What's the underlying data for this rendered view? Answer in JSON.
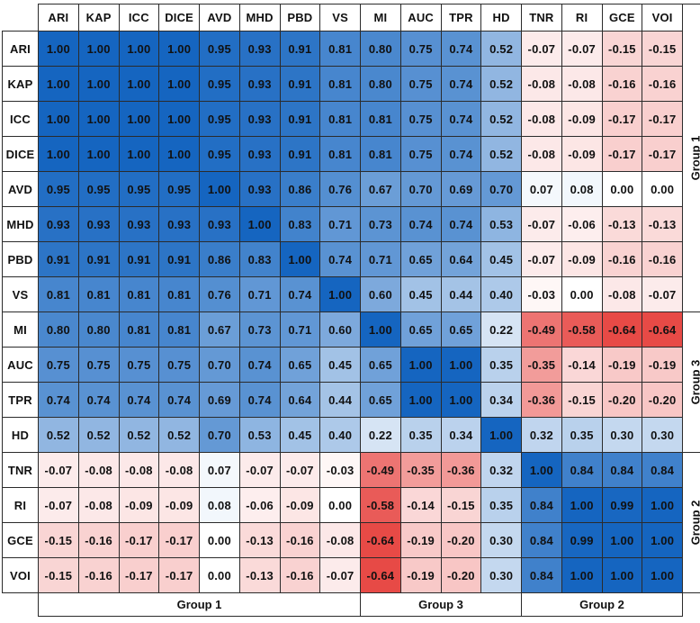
{
  "chart_data": {
    "type": "heatmap",
    "labels": [
      "ARI",
      "KAP",
      "ICC",
      "DICE",
      "AVD",
      "MHD",
      "PBD",
      "VS",
      "MI",
      "AUC",
      "TPR",
      "HD",
      "TNR",
      "RI",
      "GCE",
      "VOI"
    ],
    "values": [
      [
        1.0,
        1.0,
        1.0,
        1.0,
        0.95,
        0.93,
        0.91,
        0.81,
        0.8,
        0.75,
        0.74,
        0.52,
        -0.07,
        -0.07,
        -0.15,
        -0.15
      ],
      [
        1.0,
        1.0,
        1.0,
        1.0,
        0.95,
        0.93,
        0.91,
        0.81,
        0.8,
        0.75,
        0.74,
        0.52,
        -0.08,
        -0.08,
        -0.16,
        -0.16
      ],
      [
        1.0,
        1.0,
        1.0,
        1.0,
        0.95,
        0.93,
        0.91,
        0.81,
        0.81,
        0.75,
        0.74,
        0.52,
        -0.08,
        -0.09,
        -0.17,
        -0.17
      ],
      [
        1.0,
        1.0,
        1.0,
        1.0,
        0.95,
        0.93,
        0.91,
        0.81,
        0.81,
        0.75,
        0.74,
        0.52,
        -0.08,
        -0.09,
        -0.17,
        -0.17
      ],
      [
        0.95,
        0.95,
        0.95,
        0.95,
        1.0,
        0.93,
        0.86,
        0.76,
        0.67,
        0.7,
        0.69,
        0.7,
        0.07,
        0.08,
        0.0,
        0.0
      ],
      [
        0.93,
        0.93,
        0.93,
        0.93,
        0.93,
        1.0,
        0.83,
        0.71,
        0.73,
        0.74,
        0.74,
        0.53,
        -0.07,
        -0.06,
        -0.13,
        -0.13
      ],
      [
        0.91,
        0.91,
        0.91,
        0.91,
        0.86,
        0.83,
        1.0,
        0.74,
        0.71,
        0.65,
        0.64,
        0.45,
        -0.07,
        -0.09,
        -0.16,
        -0.16
      ],
      [
        0.81,
        0.81,
        0.81,
        0.81,
        0.76,
        0.71,
        0.74,
        1.0,
        0.6,
        0.45,
        0.44,
        0.4,
        -0.03,
        0.0,
        -0.08,
        -0.07
      ],
      [
        0.8,
        0.8,
        0.81,
        0.81,
        0.67,
        0.73,
        0.71,
        0.6,
        1.0,
        0.65,
        0.65,
        0.22,
        -0.49,
        -0.58,
        -0.64,
        -0.64
      ],
      [
        0.75,
        0.75,
        0.75,
        0.75,
        0.7,
        0.74,
        0.65,
        0.45,
        0.65,
        1.0,
        1.0,
        0.35,
        -0.35,
        -0.14,
        -0.19,
        -0.19
      ],
      [
        0.74,
        0.74,
        0.74,
        0.74,
        0.69,
        0.74,
        0.64,
        0.44,
        0.65,
        1.0,
        1.0,
        0.34,
        -0.36,
        -0.15,
        -0.2,
        -0.2
      ],
      [
        0.52,
        0.52,
        0.52,
        0.52,
        0.7,
        0.53,
        0.45,
        0.4,
        0.22,
        0.35,
        0.34,
        1.0,
        0.32,
        0.35,
        0.3,
        0.3
      ],
      [
        -0.07,
        -0.08,
        -0.08,
        -0.08,
        0.07,
        -0.07,
        -0.07,
        -0.03,
        -0.49,
        -0.35,
        -0.36,
        0.32,
        1.0,
        0.84,
        0.84,
        0.84
      ],
      [
        -0.07,
        -0.08,
        -0.09,
        -0.09,
        0.08,
        -0.06,
        -0.09,
        0.0,
        -0.58,
        -0.14,
        -0.15,
        0.35,
        0.84,
        1.0,
        0.99,
        1.0
      ],
      [
        -0.15,
        -0.16,
        -0.17,
        -0.17,
        0.0,
        -0.13,
        -0.16,
        -0.08,
        -0.64,
        -0.19,
        -0.2,
        0.3,
        0.84,
        0.99,
        1.0,
        1.0
      ],
      [
        -0.15,
        -0.16,
        -0.17,
        -0.17,
        0.0,
        -0.13,
        -0.16,
        -0.07,
        -0.64,
        -0.19,
        -0.2,
        0.3,
        0.84,
        1.0,
        1.0,
        1.0
      ]
    ],
    "groups_bottom": [
      {
        "label": "Group 1",
        "start": 0,
        "end": 7
      },
      {
        "label": "Group 3",
        "start": 8,
        "end": 11
      },
      {
        "label": "Group 2",
        "start": 12,
        "end": 15
      }
    ],
    "groups_right": [
      {
        "label": "Group 1",
        "start": 0,
        "end": 7
      },
      {
        "label": "Group 3",
        "start": 8,
        "end": 11
      },
      {
        "label": "Group 2",
        "start": 12,
        "end": 15
      }
    ],
    "colors": {
      "positive": "#1565c0",
      "negative": "#e53935",
      "neutral": "#ffffff"
    }
  }
}
